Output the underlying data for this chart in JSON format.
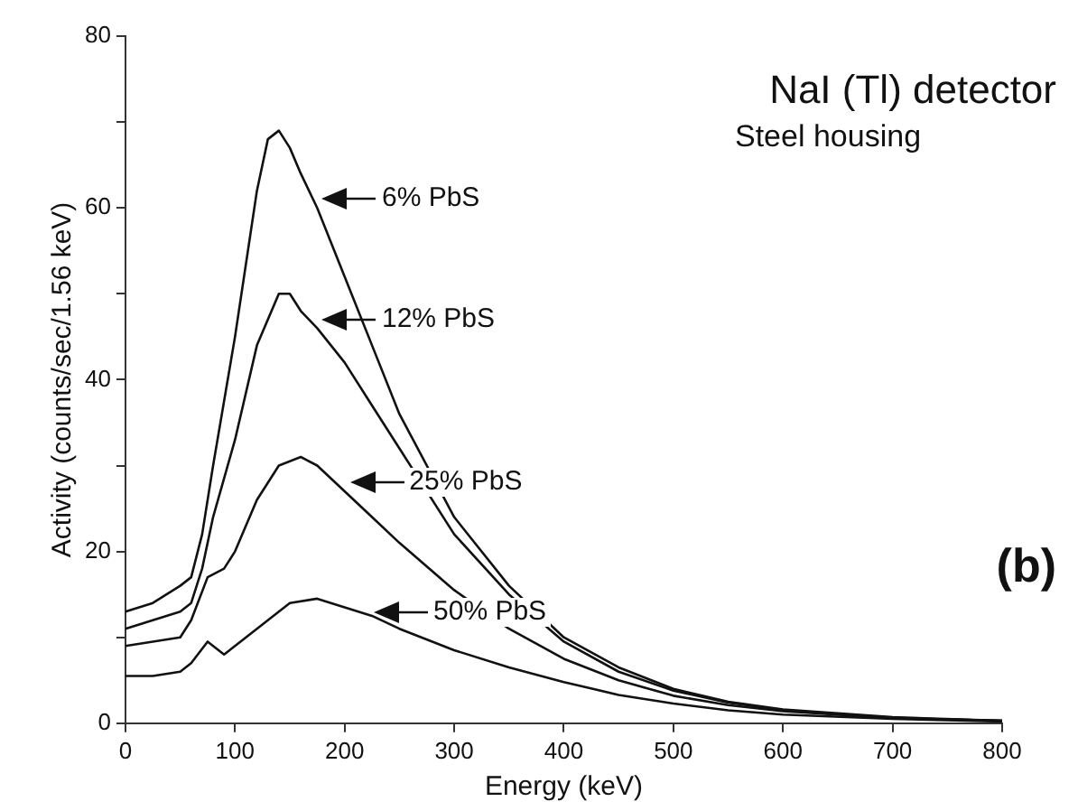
{
  "chart_data": {
    "type": "line",
    "title": "NaI (Tl) detector",
    "subtitle": "Steel housing",
    "xlabel": "Energy (keV)",
    "ylabel": "Activity (counts/sec/1.56 keV)",
    "xlim": [
      0,
      800
    ],
    "xticks": [
      0,
      100,
      200,
      300,
      400,
      500,
      600,
      700,
      800
    ],
    "ylim": [
      0,
      80
    ],
    "yticks": [
      0,
      {
        "value": 10,
        "label": null
      },
      20,
      {
        "value": 30,
        "label": null
      },
      40,
      {
        "value": 50,
        "label": null
      },
      60,
      {
        "value": 70,
        "label": null
      },
      80
    ],
    "grid": false,
    "legend": false,
    "marker": "none",
    "line_style": "solid",
    "series": [
      {
        "color": "#111111",
        "x": [
          0,
          25,
          50,
          60,
          70,
          80,
          100,
          120,
          130,
          140,
          150,
          160,
          175,
          200,
          225,
          250,
          300,
          350,
          400,
          450,
          500,
          550,
          600,
          700,
          800
        ],
        "values": [
          13,
          14,
          16,
          17,
          22,
          30,
          45,
          62,
          68,
          69,
          67,
          64,
          60,
          52,
          44,
          36,
          24,
          16,
          10,
          6.5,
          4,
          2.5,
          1.6,
          0.7,
          0.3
        ]
      },
      {
        "color": "#111111",
        "x": [
          0,
          25,
          50,
          60,
          70,
          80,
          100,
          120,
          140,
          150,
          160,
          175,
          200,
          225,
          250,
          300,
          350,
          400,
          450,
          500,
          550,
          600,
          700,
          800
        ],
        "values": [
          11,
          12,
          13,
          14,
          18,
          24,
          33,
          44,
          50,
          50,
          48,
          46,
          42,
          37,
          32,
          22,
          15,
          9.5,
          6,
          3.8,
          2.4,
          1.5,
          0.6,
          0.3
        ]
      },
      {
        "color": "#111111",
        "x": [
          0,
          25,
          50,
          60,
          75,
          90,
          100,
          120,
          140,
          160,
          175,
          200,
          225,
          250,
          300,
          350,
          400,
          450,
          500,
          550,
          600,
          700,
          800
        ],
        "values": [
          9,
          9.5,
          10,
          12,
          17,
          18,
          20,
          26,
          30,
          31,
          30,
          27,
          24,
          21,
          15.5,
          11,
          7.5,
          5,
          3.2,
          2.1,
          1.4,
          0.6,
          0.3
        ]
      },
      {
        "color": "#111111",
        "x": [
          0,
          25,
          50,
          60,
          75,
          90,
          100,
          125,
          150,
          175,
          200,
          225,
          250,
          300,
          350,
          400,
          450,
          500,
          550,
          600,
          700,
          800
        ],
        "values": [
          5.5,
          5.5,
          6,
          7,
          9.5,
          8,
          9,
          11.5,
          14,
          14.5,
          13.5,
          12.5,
          11,
          8.5,
          6.5,
          4.8,
          3.3,
          2.3,
          1.5,
          1,
          0.5,
          0.2
        ]
      }
    ],
    "annotations": [
      {
        "text": "6% PbS",
        "x": 178,
        "y": 61
      },
      {
        "text": "12% PbS",
        "x": 178,
        "y": 47
      },
      {
        "text": "25% PbS",
        "x": 203,
        "y": 28
      },
      {
        "text": "50% PbS",
        "x": 225,
        "y": 13
      },
      "(b)"
    ]
  }
}
